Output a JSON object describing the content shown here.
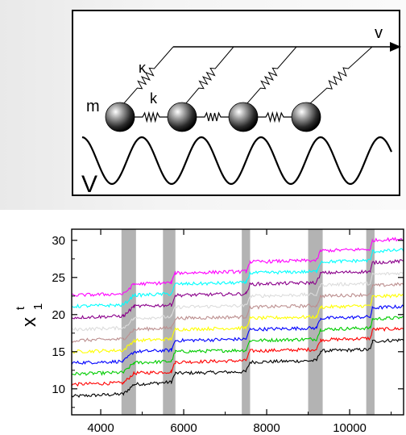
{
  "top_panel": {
    "labels": {
      "mass": "m",
      "spring_k": "k",
      "kappa": "κ",
      "velocity": "v",
      "potential": "V"
    },
    "balls": 4
  },
  "chart_data": {
    "type": "line",
    "title": "",
    "xlabel": "",
    "ylabel_main": "x",
    "ylabel_sup": "t",
    "ylabel_sub": "1",
    "xlim": [
      3300,
      11300
    ],
    "ylim": [
      6.5,
      31.5
    ],
    "xticks": [
      4000,
      6000,
      8000,
      10000
    ],
    "yticks": [
      10,
      15,
      20,
      25,
      30
    ],
    "grid": false,
    "slip_bands": [
      [
        4500,
        4850
      ],
      [
        5500,
        5800
      ],
      [
        7400,
        7600
      ],
      [
        9000,
        9350
      ],
      [
        10400,
        10600
      ]
    ],
    "series": [
      {
        "color": "#000000",
        "values": [
          {
            "x": 3300,
            "y": 9.0
          },
          {
            "x": 4550,
            "y": 9.3
          },
          {
            "x": 4800,
            "y": 10.6
          },
          {
            "x": 5700,
            "y": 10.9
          },
          {
            "x": 5800,
            "y": 12.1
          },
          {
            "x": 7500,
            "y": 12.3
          },
          {
            "x": 7600,
            "y": 13.6
          },
          {
            "x": 9200,
            "y": 13.8
          },
          {
            "x": 9300,
            "y": 15.1
          },
          {
            "x": 10500,
            "y": 15.3
          },
          {
            "x": 10550,
            "y": 16.4
          },
          {
            "x": 11300,
            "y": 16.6
          }
        ]
      },
      {
        "color": "#ff0000",
        "values": [
          {
            "x": 3300,
            "y": 10.6
          },
          {
            "x": 4550,
            "y": 10.8
          },
          {
            "x": 4800,
            "y": 12.1
          },
          {
            "x": 5700,
            "y": 12.3
          },
          {
            "x": 5800,
            "y": 13.6
          },
          {
            "x": 7500,
            "y": 13.8
          },
          {
            "x": 7600,
            "y": 15.1
          },
          {
            "x": 9200,
            "y": 15.3
          },
          {
            "x": 9300,
            "y": 16.6
          },
          {
            "x": 10500,
            "y": 16.8
          },
          {
            "x": 10550,
            "y": 18.0
          },
          {
            "x": 11300,
            "y": 18.1
          }
        ]
      },
      {
        "color": "#00cc00",
        "values": [
          {
            "x": 3300,
            "y": 12.0
          },
          {
            "x": 4550,
            "y": 12.2
          },
          {
            "x": 4800,
            "y": 13.5
          },
          {
            "x": 5700,
            "y": 13.7
          },
          {
            "x": 5800,
            "y": 15.0
          },
          {
            "x": 7500,
            "y": 15.2
          },
          {
            "x": 7600,
            "y": 16.5
          },
          {
            "x": 9200,
            "y": 16.7
          },
          {
            "x": 9300,
            "y": 18.0
          },
          {
            "x": 10500,
            "y": 18.2
          },
          {
            "x": 10550,
            "y": 19.4
          },
          {
            "x": 11300,
            "y": 19.6
          }
        ]
      },
      {
        "color": "#0000ff",
        "values": [
          {
            "x": 3300,
            "y": 13.5
          },
          {
            "x": 4550,
            "y": 13.7
          },
          {
            "x": 4800,
            "y": 15.0
          },
          {
            "x": 5700,
            "y": 15.2
          },
          {
            "x": 5800,
            "y": 16.5
          },
          {
            "x": 7500,
            "y": 16.7
          },
          {
            "x": 7600,
            "y": 18.0
          },
          {
            "x": 9200,
            "y": 18.2
          },
          {
            "x": 9300,
            "y": 19.5
          },
          {
            "x": 10500,
            "y": 19.7
          },
          {
            "x": 10550,
            "y": 20.9
          },
          {
            "x": 11300,
            "y": 21.1
          }
        ]
      },
      {
        "color": "#ffff00",
        "values": [
          {
            "x": 3300,
            "y": 15.0
          },
          {
            "x": 4550,
            "y": 15.2
          },
          {
            "x": 4800,
            "y": 16.5
          },
          {
            "x": 5700,
            "y": 16.7
          },
          {
            "x": 5800,
            "y": 18.0
          },
          {
            "x": 7500,
            "y": 18.2
          },
          {
            "x": 7600,
            "y": 19.5
          },
          {
            "x": 9200,
            "y": 19.7
          },
          {
            "x": 9300,
            "y": 21.0
          },
          {
            "x": 10500,
            "y": 21.2
          },
          {
            "x": 10550,
            "y": 22.4
          },
          {
            "x": 11300,
            "y": 22.6
          }
        ]
      },
      {
        "color": "#bc8f8f",
        "values": [
          {
            "x": 3300,
            "y": 16.5
          },
          {
            "x": 4550,
            "y": 16.7
          },
          {
            "x": 4800,
            "y": 18.0
          },
          {
            "x": 5700,
            "y": 18.2
          },
          {
            "x": 5800,
            "y": 19.5
          },
          {
            "x": 7500,
            "y": 19.7
          },
          {
            "x": 7600,
            "y": 21.0
          },
          {
            "x": 9200,
            "y": 21.2
          },
          {
            "x": 9300,
            "y": 22.5
          },
          {
            "x": 10500,
            "y": 22.7
          },
          {
            "x": 10550,
            "y": 23.9
          },
          {
            "x": 11300,
            "y": 24.1
          }
        ]
      },
      {
        "color": "#dcdcdc",
        "values": [
          {
            "x": 3300,
            "y": 18.0
          },
          {
            "x": 4550,
            "y": 18.2
          },
          {
            "x": 4800,
            "y": 19.5
          },
          {
            "x": 5700,
            "y": 19.7
          },
          {
            "x": 5800,
            "y": 21.0
          },
          {
            "x": 7500,
            "y": 21.2
          },
          {
            "x": 7600,
            "y": 22.5
          },
          {
            "x": 9200,
            "y": 22.7
          },
          {
            "x": 9300,
            "y": 24.0
          },
          {
            "x": 10500,
            "y": 24.2
          },
          {
            "x": 10550,
            "y": 25.4
          },
          {
            "x": 11300,
            "y": 25.6
          }
        ]
      },
      {
        "color": "#8b008b",
        "values": [
          {
            "x": 3300,
            "y": 19.6
          },
          {
            "x": 4550,
            "y": 19.8
          },
          {
            "x": 4800,
            "y": 21.1
          },
          {
            "x": 5700,
            "y": 21.3
          },
          {
            "x": 5800,
            "y": 22.6
          },
          {
            "x": 7500,
            "y": 22.8
          },
          {
            "x": 7600,
            "y": 24.1
          },
          {
            "x": 9200,
            "y": 24.3
          },
          {
            "x": 9300,
            "y": 25.6
          },
          {
            "x": 10500,
            "y": 25.8
          },
          {
            "x": 10550,
            "y": 27.0
          },
          {
            "x": 11300,
            "y": 27.2
          }
        ]
      },
      {
        "color": "#00ffff",
        "values": [
          {
            "x": 3300,
            "y": 21.1
          },
          {
            "x": 4550,
            "y": 21.3
          },
          {
            "x": 4800,
            "y": 22.6
          },
          {
            "x": 5700,
            "y": 22.8
          },
          {
            "x": 5800,
            "y": 24.1
          },
          {
            "x": 7500,
            "y": 24.3
          },
          {
            "x": 7600,
            "y": 25.6
          },
          {
            "x": 9200,
            "y": 25.8
          },
          {
            "x": 9300,
            "y": 27.1
          },
          {
            "x": 10500,
            "y": 27.3
          },
          {
            "x": 10550,
            "y": 28.5
          },
          {
            "x": 11300,
            "y": 28.7
          }
        ]
      },
      {
        "color": "#ff00ff",
        "values": [
          {
            "x": 3300,
            "y": 22.6
          },
          {
            "x": 4550,
            "y": 22.8
          },
          {
            "x": 4800,
            "y": 24.1
          },
          {
            "x": 5700,
            "y": 24.3
          },
          {
            "x": 5800,
            "y": 25.6
          },
          {
            "x": 7500,
            "y": 25.8
          },
          {
            "x": 7600,
            "y": 27.1
          },
          {
            "x": 9200,
            "y": 27.3
          },
          {
            "x": 9300,
            "y": 28.6
          },
          {
            "x": 10500,
            "y": 28.8
          },
          {
            "x": 10550,
            "y": 30.0
          },
          {
            "x": 11300,
            "y": 30.2
          }
        ]
      }
    ]
  }
}
